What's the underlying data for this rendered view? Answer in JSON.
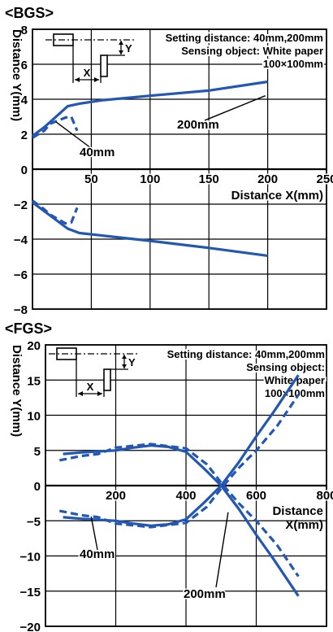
{
  "chart_data": [
    {
      "type": "line",
      "title": "<BGS>",
      "xlabel": "Distance X(mm)",
      "ylabel": "Distance Y(mm)",
      "xlim": [
        0,
        250
      ],
      "ylim": [
        -8,
        8
      ],
      "x_ticks": [
        50,
        100,
        150,
        200,
        250
      ],
      "y_ticks": [
        -8,
        -6,
        -4,
        -2,
        0,
        2,
        4,
        6,
        8
      ],
      "grid": true,
      "annotation_lines": [
        "Setting distance: 40mm,200mm",
        "Sensing object: White paper",
        "100×100mm"
      ],
      "inset_labels": {
        "x": "X",
        "y": "Y"
      },
      "series": [
        {
          "name": "200mm",
          "style": "solid",
          "segments": [
            [
              [
                0,
                1.9
              ],
              [
                10,
                2.4
              ],
              [
                30,
                3.6
              ],
              [
                40,
                3.75
              ],
              [
                60,
                3.95
              ],
              [
                100,
                4.2
              ],
              [
                150,
                4.5
              ],
              [
                200,
                5.0
              ]
            ],
            [
              [
                0,
                -1.9
              ],
              [
                10,
                -2.4
              ],
              [
                30,
                -3.4
              ],
              [
                40,
                -3.65
              ],
              [
                60,
                -3.8
              ],
              [
                100,
                -4.1
              ],
              [
                150,
                -4.5
              ],
              [
                200,
                -4.95
              ]
            ]
          ]
        },
        {
          "name": "40mm",
          "style": "dashed",
          "segments": [
            [
              [
                0,
                1.8
              ],
              [
                10,
                2.2
              ],
              [
                15,
                2.6
              ],
              [
                28,
                2.95
              ],
              [
                33,
                3.0
              ],
              [
                38,
                2.2
              ]
            ],
            [
              [
                0,
                -1.8
              ],
              [
                10,
                -2.3
              ],
              [
                15,
                -2.6
              ],
              [
                28,
                -3.1
              ],
              [
                33,
                -3.05
              ],
              [
                38,
                -2.2
              ]
            ]
          ]
        }
      ],
      "callouts": [
        {
          "text": "200mm",
          "series": "200mm"
        },
        {
          "text": "40mm",
          "series": "40mm"
        }
      ]
    },
    {
      "type": "line",
      "title": "<FGS>",
      "xlabel": "Distance X(mm)",
      "ylabel": "Distance Y(mm)",
      "xlim": [
        0,
        800
      ],
      "ylim": [
        -20,
        20
      ],
      "x_ticks": [
        200,
        400,
        600,
        800
      ],
      "y_ticks": [
        -20,
        -15,
        -10,
        -5,
        0,
        5,
        10,
        15,
        20
      ],
      "grid": true,
      "annotation_lines": [
        "Setting distance: 40mm,200mm",
        "Sensing object:",
        "White paper",
        "100×100mm"
      ],
      "inset_labels": {
        "x": "X",
        "y": "Y"
      },
      "series": [
        {
          "name": "200mm",
          "style": "solid",
          "segments": [
            [
              [
                50,
                -4.5
              ],
              [
                100,
                -4.7
              ],
              [
                200,
                -5.0
              ],
              [
                250,
                -5.4
              ],
              [
                300,
                -5.7
              ],
              [
                350,
                -5.5
              ],
              [
                400,
                -4.8
              ],
              [
                450,
                -2.5
              ],
              [
                500,
                0
              ],
              [
                550,
                3.3
              ],
              [
                600,
                7.0
              ],
              [
                650,
                10.5
              ],
              [
                720,
                15.7
              ]
            ],
            [
              [
                50,
                4.5
              ],
              [
                100,
                4.7
              ],
              [
                200,
                5.0
              ],
              [
                250,
                5.4
              ],
              [
                300,
                5.7
              ],
              [
                350,
                5.5
              ],
              [
                400,
                4.8
              ],
              [
                450,
                2.5
              ],
              [
                500,
                0
              ],
              [
                550,
                -3.3
              ],
              [
                600,
                -7.0
              ],
              [
                650,
                -10.5
              ],
              [
                720,
                -15.7
              ]
            ]
          ]
        },
        {
          "name": "40mm",
          "style": "dashed",
          "segments": [
            [
              [
                40,
                3.6
              ],
              [
                100,
                4.2
              ],
              [
                150,
                4.5
              ],
              [
                200,
                5.4
              ],
              [
                300,
                5.9
              ],
              [
                400,
                5.3
              ],
              [
                460,
                3.0
              ],
              [
                500,
                0.4
              ],
              [
                550,
                -2.5
              ],
              [
                600,
                -5.0
              ],
              [
                660,
                -8.5
              ],
              [
                720,
                -12.9
              ]
            ],
            [
              [
                40,
                -3.6
              ],
              [
                100,
                -4.2
              ],
              [
                150,
                -4.5
              ],
              [
                200,
                -5.4
              ],
              [
                300,
                -5.9
              ],
              [
                400,
                -5.3
              ],
              [
                460,
                -3.0
              ],
              [
                500,
                -0.4
              ],
              [
                550,
                2.5
              ],
              [
                600,
                5.0
              ],
              [
                660,
                8.5
              ],
              [
                720,
                12.9
              ]
            ]
          ]
        }
      ],
      "callouts": [
        {
          "text": "40mm",
          "series": "40mm"
        },
        {
          "text": "200mm",
          "series": "200mm"
        }
      ]
    }
  ],
  "colors": {
    "line": "#2257b3",
    "grid": "#000000",
    "axis": "#000000"
  }
}
